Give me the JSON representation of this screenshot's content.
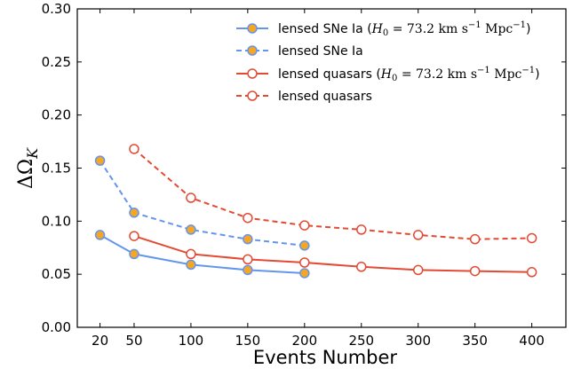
{
  "chart_data": {
    "type": "line",
    "xlabel": "Events Number",
    "ylabel": "ΔΩK",
    "ylim": [
      0.0,
      0.3
    ],
    "xlim": [
      0,
      430
    ],
    "x_ticks": [
      20,
      50,
      100,
      150,
      200,
      250,
      300,
      350,
      400
    ],
    "y_ticks": [
      0.0,
      0.05,
      0.1,
      0.15,
      0.2,
      0.25,
      0.3
    ],
    "y_tick_labels": [
      "0.00",
      "0.05",
      "0.10",
      "0.15",
      "0.20",
      "0.25",
      "0.30"
    ],
    "grid": false,
    "legend_position": "top-right",
    "series": [
      {
        "name": "lensed SNe Ia (H0 = 73.2 km s−1 Mpc−1)",
        "color": "#6495ED",
        "linestyle": "solid",
        "marker": "filled",
        "marker_fill": "#F5A623",
        "x": [
          20,
          50,
          100,
          150,
          200
        ],
        "values": [
          0.087,
          0.069,
          0.059,
          0.054,
          0.051
        ]
      },
      {
        "name": "lensed SNe Ia",
        "color": "#6495ED",
        "linestyle": "dashed",
        "marker": "filled",
        "marker_fill": "#F5A623",
        "x": [
          20,
          50,
          100,
          150,
          200
        ],
        "values": [
          0.157,
          0.108,
          0.092,
          0.083,
          0.077
        ]
      },
      {
        "name": "lensed quasars (H0 = 73.2 km s−1 Mpc−1)",
        "color": "#E24A33",
        "linestyle": "solid",
        "marker": "open",
        "marker_fill": "#FFFFFF",
        "x": [
          50,
          100,
          150,
          200,
          250,
          300,
          350,
          400
        ],
        "values": [
          0.086,
          0.069,
          0.064,
          0.061,
          0.057,
          0.054,
          0.053,
          0.052
        ]
      },
      {
        "name": "lensed quasars",
        "color": "#E24A33",
        "linestyle": "dashed",
        "marker": "open",
        "marker_fill": "#FFFFFF",
        "x": [
          50,
          100,
          150,
          200,
          250,
          300,
          350,
          400
        ],
        "values": [
          0.168,
          0.122,
          0.103,
          0.096,
          0.092,
          0.087,
          0.083,
          0.084
        ]
      }
    ]
  }
}
